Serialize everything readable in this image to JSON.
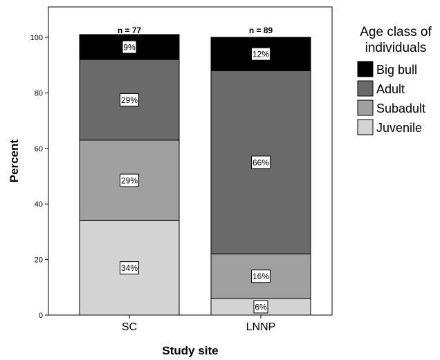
{
  "chart_data": {
    "type": "bar",
    "stacked": true,
    "categories": [
      "SC",
      "LNNP"
    ],
    "n_labels": [
      "n = 77",
      "n = 89"
    ],
    "series": [
      {
        "name": "Juvenile",
        "values": [
          34,
          6
        ],
        "labels": [
          "34%",
          "6%"
        ],
        "color": "#d3d3d3"
      },
      {
        "name": "Subadult",
        "values": [
          29,
          16
        ],
        "labels": [
          "29%",
          "16%"
        ],
        "color": "#a0a0a0"
      },
      {
        "name": "Adult",
        "values": [
          29,
          66
        ],
        "labels": [
          "29%",
          "66%"
        ],
        "color": "#6a6a6a"
      },
      {
        "name": "Big bull",
        "values": [
          9,
          12
        ],
        "labels": [
          "9%",
          "12%"
        ],
        "color": "#000000"
      }
    ],
    "xlabel": "Study site",
    "ylabel": "Percent",
    "ylim": [
      0,
      100
    ],
    "yticks": [
      0,
      20,
      40,
      60,
      80,
      100
    ],
    "legend": {
      "title_lines": [
        "Age class of",
        "individuals"
      ],
      "order": [
        "Big bull",
        "Adult",
        "Subadult",
        "Juvenile"
      ],
      "placement": "right"
    },
    "grid": false
  }
}
